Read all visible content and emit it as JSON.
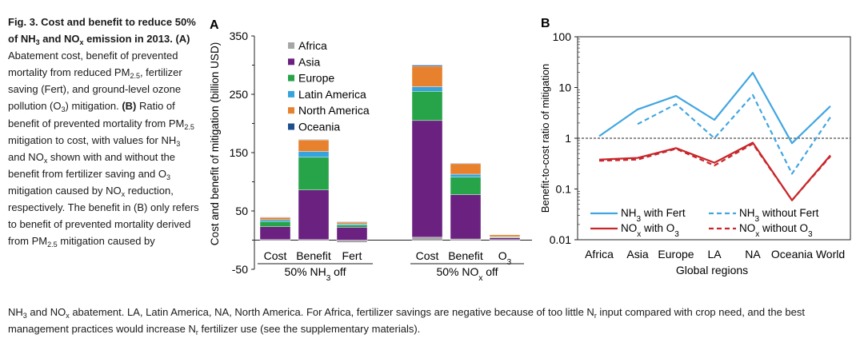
{
  "figure": {
    "title": "Fig. 3. Cost and benefit to reduce 50% of NH3 and NOx emission in 2013.",
    "caption_a": "(A) Abatement cost, benefit of prevented mortality from reduced PM2.5, fertilizer saving (Fert), and ground-level ozone pollution (O3) mitigation.",
    "caption_b": "(B) Ratio of benefit of prevented mortality from PM2.5 mitigation to cost, with values for NH3 and NOx shown with and without the benefit from fertilizer saving and O3 mitigation caused by NOx reduction, respectively. The benefit in (B) only refers to benefit of prevented mortality derived from PM2.5 mitigation caused by NH3 and NOx abatement. LA, Latin America, NA, North America. For Africa, fertilizer savings are negative because of too little Nr input compared with crop need, and the best management practices would increase Nr fertilizer use (see the supplementary materials)."
  },
  "chart_data": [
    {
      "panel": "A",
      "type": "bar",
      "stacked": true,
      "ylabel": "Cost and benefit of mitigation (billion USD)",
      "ylim": [
        -50,
        350
      ],
      "yticks": [
        "350",
        "250",
        "150",
        "50",
        "-50"
      ],
      "yticks_values": [
        350,
        250,
        150,
        50,
        -50
      ],
      "categories": [
        "Cost",
        "Benefit",
        "Fert",
        "Cost",
        "Benefit",
        "O3"
      ],
      "groups": [
        "50% NH3 off",
        "50% NOx off"
      ],
      "legend": [
        "Africa",
        "Asia",
        "Europe",
        "Latin America",
        "North America",
        "Oceania"
      ],
      "colors": [
        "#a6a6a6",
        "#6b2180",
        "#27a449",
        "#36a3dc",
        "#e7812e",
        "#1f4e8c"
      ],
      "series": [
        {
          "name": "Africa",
          "values": [
            1,
            1,
            -4,
            5,
            2,
            1
          ]
        },
        {
          "name": "Asia",
          "values": [
            22,
            85,
            22,
            200,
            76,
            3
          ]
        },
        {
          "name": "Europe",
          "values": [
            9,
            56,
            4,
            50,
            30,
            1
          ]
        },
        {
          "name": "Latin America",
          "values": [
            3,
            10,
            2,
            8,
            5,
            1
          ]
        },
        {
          "name": "North America",
          "values": [
            4,
            20,
            3,
            35,
            18,
            3
          ]
        },
        {
          "name": "Oceania",
          "values": [
            0.5,
            0.5,
            0.5,
            2,
            1,
            0
          ]
        }
      ]
    },
    {
      "panel": "B",
      "type": "line",
      "yscale": "log",
      "ylabel": "Benefit-to-cost ratio of mitigation",
      "xlabel": "Global regions",
      "ylim": [
        0.01,
        100
      ],
      "yticks": [
        "100",
        "10",
        "1",
        "0.1",
        "0.01"
      ],
      "yticks_values": [
        100,
        10,
        1,
        0.1,
        0.01
      ],
      "reference_line": 1,
      "categories": [
        "Africa",
        "Asia",
        "Europe",
        "LA",
        "NA",
        "Oceania",
        "World"
      ],
      "series": [
        {
          "name": "NH3 with Fert",
          "color": "#41a6e0",
          "dash": false,
          "values": [
            1.1,
            3.7,
            6.8,
            2.3,
            19.5,
            0.8,
            4.3
          ]
        },
        {
          "name": "NH3 without Fert",
          "color": "#41a6e0",
          "dash": true,
          "values": [
            null,
            1.9,
            4.7,
            1.0,
            7.1,
            0.2,
            2.6
          ]
        },
        {
          "name": "NOx with O3",
          "color": "#c8262a",
          "dash": false,
          "values": [
            0.38,
            0.41,
            0.64,
            0.33,
            0.82,
            0.06,
            0.46
          ]
        },
        {
          "name": "NOx without O3",
          "color": "#c8262a",
          "dash": true,
          "values": [
            0.36,
            0.38,
            0.62,
            0.29,
            0.78,
            0.06,
            0.44
          ]
        }
      ]
    }
  ]
}
